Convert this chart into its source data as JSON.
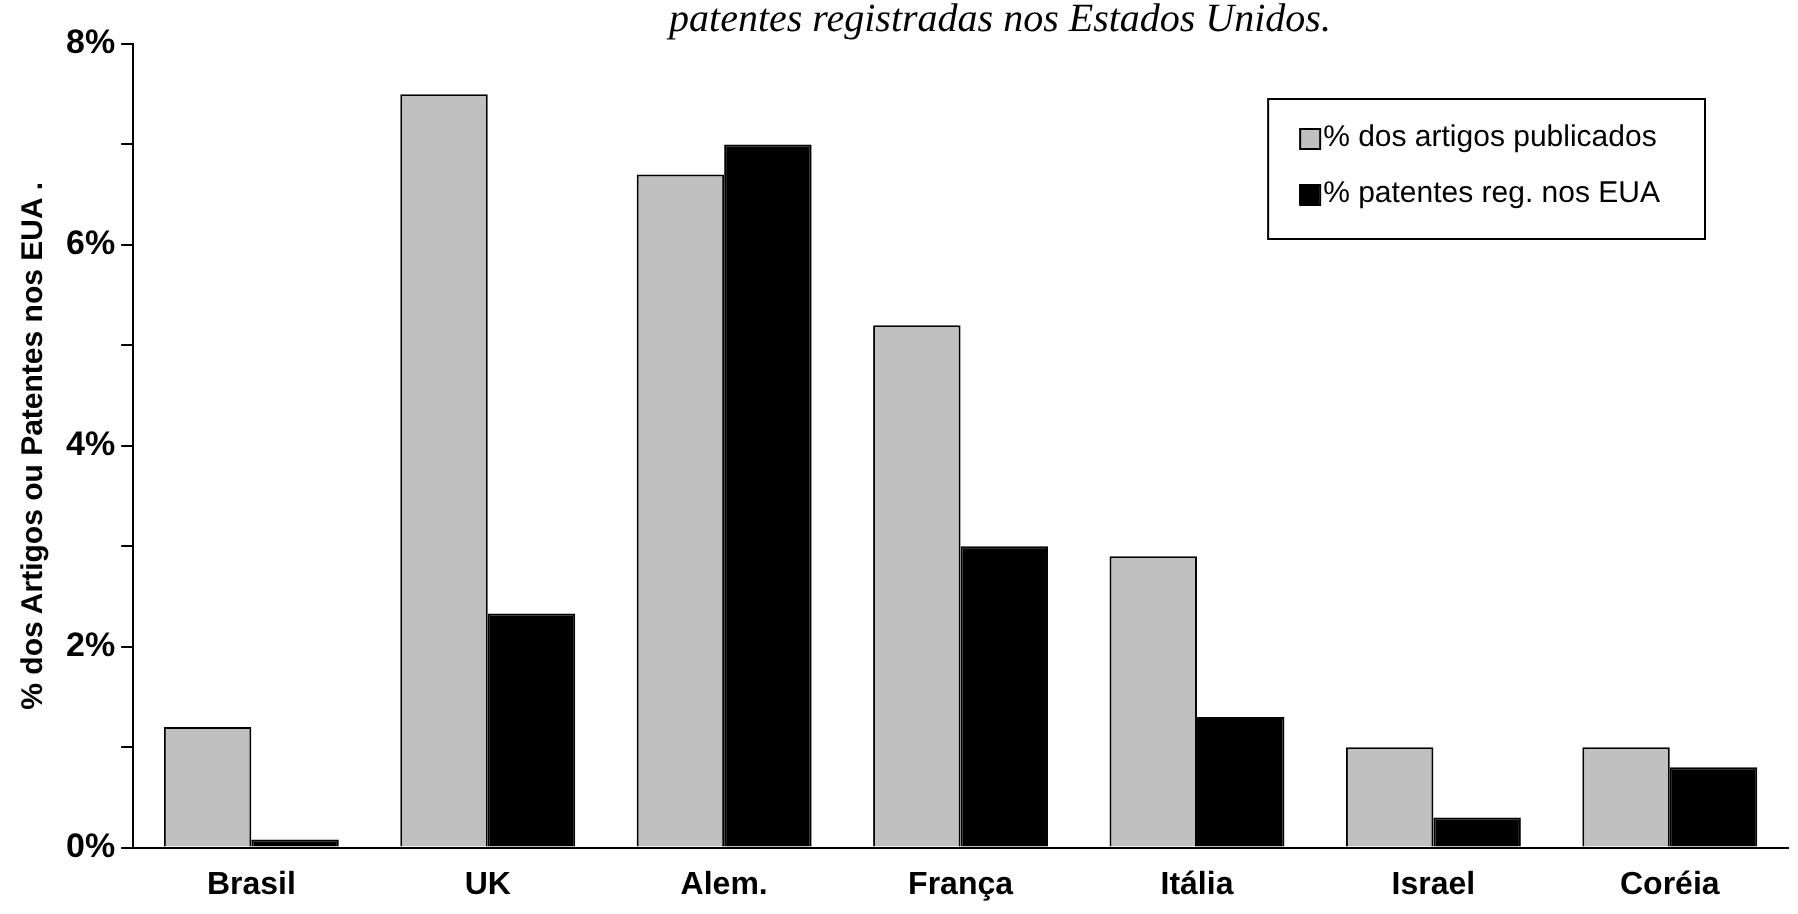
{
  "chart_data": {
    "type": "bar",
    "title": "patentes registradas nos Estados Unidos.",
    "ylabel": "% dos Artigos ou Patentes nos EUA .",
    "categories": [
      "Brasil",
      "UK",
      "Alem.",
      "França",
      "Itália",
      "Israel",
      "Coréia"
    ],
    "series": [
      {
        "name": "% dos artigos publicados",
        "color": "#c0c0c0",
        "values": [
          1.2,
          7.5,
          6.7,
          5.2,
          2.9,
          1.0,
          1.0
        ]
      },
      {
        "name": "% patentes reg. nos EUA",
        "color": "#000000",
        "values": [
          0.08,
          2.33,
          7.0,
          3.0,
          1.3,
          0.3,
          0.8
        ]
      }
    ],
    "ylim": [
      0,
      8
    ],
    "yticks": [
      {
        "value": 0,
        "label": "0%"
      },
      {
        "value": 1,
        "label": null
      },
      {
        "value": 2,
        "label": "2%"
      },
      {
        "value": 3,
        "label": null
      },
      {
        "value": 4,
        "label": "4%"
      },
      {
        "value": 5,
        "label": null
      },
      {
        "value": 6,
        "label": "6%"
      },
      {
        "value": 7,
        "label": null
      },
      {
        "value": 8,
        "label": "8%"
      }
    ],
    "grid": false,
    "legend": "top right"
  }
}
